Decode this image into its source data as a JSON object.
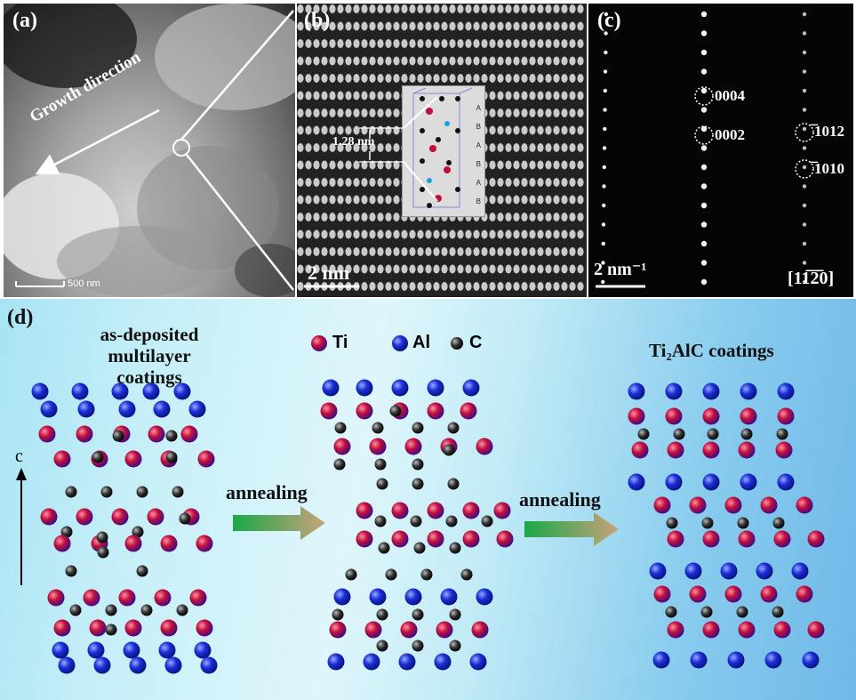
{
  "panel_a": {
    "label": "(a)",
    "growth_label": "Growth direction",
    "scale_bar": "500 nm"
  },
  "panel_b": {
    "label": "(b)",
    "spacing": "1.28 nm",
    "scale_bar": "2 nm",
    "stacking": [
      "A",
      "B",
      "A",
      "B",
      "A",
      "B"
    ]
  },
  "panel_c": {
    "label": "(c)",
    "scale_bar": "2 nm⁻¹",
    "zone_axis": "[11̅2̅0]",
    "spots": [
      "0004",
      "0002",
      "̅1012",
      "̅1010"
    ]
  },
  "panel_d": {
    "label": "(d)",
    "left_title": [
      "as-deposited",
      "multilayer coatings"
    ],
    "right_title": "Ti₂AlC coatings",
    "legend": [
      "Ti",
      "Al",
      "C"
    ],
    "arrow_label_1": "annealing",
    "arrow_label_2": "annealing",
    "axis_label": "c"
  },
  "colors": {
    "ti": "#c0103a",
    "al": "#1a2fd6",
    "c": "#222222",
    "arrow_start": "#1aa84a",
    "arrow_end": "#c9a27a"
  }
}
